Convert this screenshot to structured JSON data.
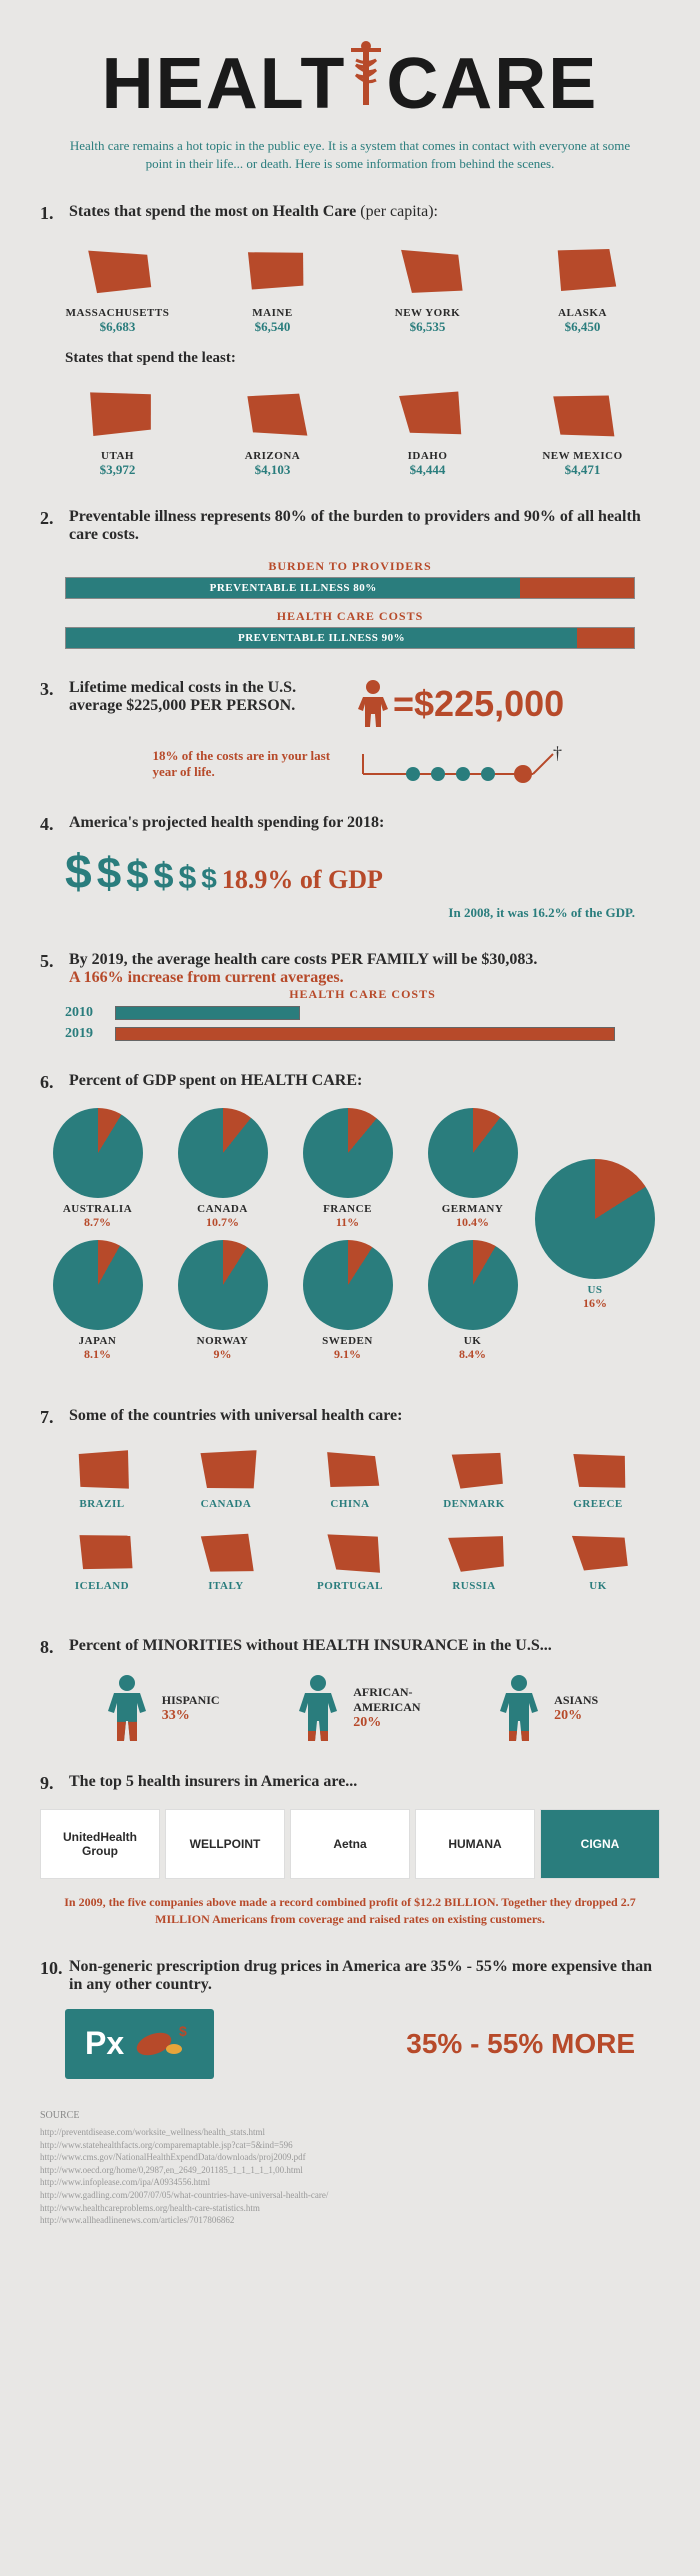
{
  "title": {
    "left": "HEALT",
    "right": "CARE"
  },
  "subtitle": "Health care remains a hot topic in the public eye. It is a system that comes in contact with everyone at some point in their life... or death. Here is some information from behind the scenes.",
  "colors": {
    "teal": "#2a7d7d",
    "rust": "#b74a2a",
    "bg": "#e8e7e5"
  },
  "s1": {
    "heading": "States that spend the most on Health Care",
    "heading_suffix": "(per capita):",
    "most": [
      {
        "name": "MASSACHUSETTS",
        "value": "$6,683"
      },
      {
        "name": "MAINE",
        "value": "$6,540"
      },
      {
        "name": "NEW YORK",
        "value": "$6,535"
      },
      {
        "name": "ALASKA",
        "value": "$6,450"
      }
    ],
    "sub": "States that spend the least:",
    "least": [
      {
        "name": "UTAH",
        "value": "$3,972"
      },
      {
        "name": "ARIZONA",
        "value": "$4,103"
      },
      {
        "name": "IDAHO",
        "value": "$4,444"
      },
      {
        "name": "NEW MEXICO",
        "value": "$4,471"
      }
    ]
  },
  "s2": {
    "heading": "Preventable illness represents 80% of the burden to providers and 90% of all health care costs.",
    "bar1_label": "BURDEN TO PROVIDERS",
    "bar1_text": "PREVENTABLE ILLNESS 80%",
    "bar1_pct": 80,
    "bar2_label": "HEALTH CARE COSTS",
    "bar2_text": "PREVENTABLE ILLNESS 90%",
    "bar2_pct": 90
  },
  "s3": {
    "heading": "Lifetime medical costs in the U.S. average $225,000 PER PERSON.",
    "value": "=$225,000",
    "dots_text": "18% of the costs are in your last year of life."
  },
  "s4": {
    "heading": "America's projected health spending for 2018:",
    "dollar_sizes": [
      48,
      44,
      40,
      36,
      32,
      28
    ],
    "gdp": "18.9% of GDP",
    "note": "In 2008, it was 16.2% of the GDP."
  },
  "s5": {
    "heading": "By 2019, the average health care costs PER FAMILY will be $30,083.",
    "sub": "A 166% increase from current averages.",
    "bars_label": "HEALTH CARE COSTS",
    "rows": [
      {
        "label": "2010",
        "pct": 37,
        "color": "#2a7d7d"
      },
      {
        "label": "2019",
        "pct": 100,
        "color": "#b74a2a"
      }
    ]
  },
  "s6": {
    "heading": "Percent of GDP spent on HEALTH CARE:",
    "pies": [
      {
        "name": "AUSTRALIA",
        "value": "8.7%",
        "pct": 8.7
      },
      {
        "name": "CANADA",
        "value": "10.7%",
        "pct": 10.7
      },
      {
        "name": "FRANCE",
        "value": "11%",
        "pct": 11
      },
      {
        "name": "GERMANY",
        "value": "10.4%",
        "pct": 10.4
      },
      {
        "name": "JAPAN",
        "value": "8.1%",
        "pct": 8.1
      },
      {
        "name": "NORWAY",
        "value": "9%",
        "pct": 9
      },
      {
        "name": "SWEDEN",
        "value": "9.1%",
        "pct": 9.1
      },
      {
        "name": "UK",
        "value": "8.4%",
        "pct": 8.4
      }
    ],
    "us": {
      "name": "US",
      "value": "16%",
      "pct": 16
    }
  },
  "s7": {
    "heading": "Some of the countries with universal health care:",
    "countries": [
      "BRAZIL",
      "CANADA",
      "CHINA",
      "DENMARK",
      "GREECE",
      "ICELAND",
      "ITALY",
      "PORTUGAL",
      "RUSSIA",
      "UK"
    ]
  },
  "s8": {
    "heading": "Percent of MINORITIES without HEALTH INSURANCE in the U.S...",
    "items": [
      {
        "name": "HISPANIC",
        "value": "33%",
        "pct": 33
      },
      {
        "name": "AFRICAN-\nAMERICAN",
        "value": "20%",
        "pct": 20
      },
      {
        "name": "ASIANS",
        "value": "20%",
        "pct": 20
      }
    ]
  },
  "s9": {
    "heading": "The top 5 health insurers in America are...",
    "insurers": [
      "UnitedHealth Group",
      "WELLPOINT",
      "Aetna",
      "HUMANA",
      "CIGNA"
    ],
    "note": "In 2009, the five companies above made a record combined profit of $12.2 BILLION. Together they dropped 2.7 MILLION Americans from coverage and raised rates on existing customers."
  },
  "s10": {
    "heading": "Non-generic prescription drug prices in America are 35% - 55% more expensive than in any other country.",
    "px": "Px",
    "value": "35% - 55% MORE"
  },
  "sources": {
    "title": "SOURCE",
    "urls": [
      "http://preventdisease.com/worksite_wellness/health_stats.html",
      "http://www.statehealthfacts.org/comparemaptable.jsp?cat=5&ind=596",
      "http://www.cms.gov/NationalHealthExpendData/downloads/proj2009.pdf",
      "http://www.oecd.org/home/0,2987,en_2649_201185_1_1_1_1_1,00.html",
      "http://www.infoplease.com/ipa/A0934556.html",
      "http://www.gadling.com/2007/07/05/what-countries-have-universal-health-care/",
      "http://www.healthcareproblems.org/health-care-statistics.htm",
      "http://www.allheadlinenews.com/articles/7017806862"
    ]
  }
}
